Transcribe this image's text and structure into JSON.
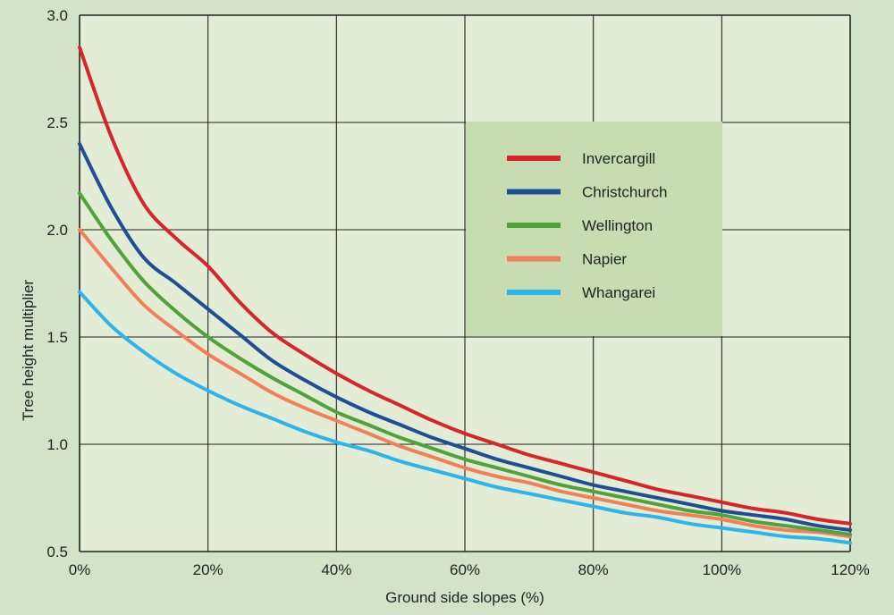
{
  "colors": {
    "page_background": "#d2e3c8",
    "plot_background": "#e3ecd5",
    "legend_background": "#c7dcb0",
    "grid": "#222222"
  },
  "chart_data": {
    "type": "line",
    "title": "",
    "xlabel": "Ground side slopes (%)",
    "ylabel": "Tree height multiplier",
    "xlim": [
      0,
      120
    ],
    "ylim": [
      0.5,
      3.0
    ],
    "x_ticks": [
      0,
      20,
      40,
      60,
      80,
      100,
      120
    ],
    "x_tick_labels": [
      "0%",
      "20%",
      "40%",
      "60%",
      "80%",
      "100%",
      "120%"
    ],
    "y_ticks": [
      0.5,
      1.0,
      1.5,
      2.0,
      2.5,
      3.0
    ],
    "y_tick_labels": [
      "0.5",
      "1.0",
      "1.5",
      "2.0",
      "2.5",
      "3.0"
    ],
    "grid": true,
    "legend_position": "upper-right",
    "x": [
      0,
      5,
      10,
      15,
      20,
      25,
      30,
      35,
      40,
      45,
      50,
      55,
      60,
      65,
      70,
      75,
      80,
      85,
      90,
      95,
      100,
      105,
      110,
      115,
      120
    ],
    "series": [
      {
        "name": "Invercargill",
        "color": "#d8242b",
        "values": [
          2.85,
          2.43,
          2.12,
          1.96,
          1.83,
          1.66,
          1.52,
          1.42,
          1.33,
          1.25,
          1.18,
          1.11,
          1.05,
          1.0,
          0.95,
          0.91,
          0.87,
          0.83,
          0.79,
          0.76,
          0.73,
          0.7,
          0.68,
          0.65,
          0.63
        ]
      },
      {
        "name": "Christchurch",
        "color": "#1e4f93",
        "values": [
          2.4,
          2.1,
          1.87,
          1.75,
          1.63,
          1.51,
          1.39,
          1.3,
          1.22,
          1.15,
          1.09,
          1.03,
          0.98,
          0.93,
          0.89,
          0.85,
          0.81,
          0.78,
          0.75,
          0.72,
          0.69,
          0.67,
          0.65,
          0.62,
          0.6
        ]
      },
      {
        "name": "Wellington",
        "color": "#4fa33a",
        "values": [
          2.17,
          1.95,
          1.76,
          1.62,
          1.5,
          1.4,
          1.31,
          1.23,
          1.15,
          1.09,
          1.03,
          0.98,
          0.93,
          0.89,
          0.85,
          0.81,
          0.78,
          0.75,
          0.72,
          0.69,
          0.67,
          0.64,
          0.62,
          0.6,
          0.58
        ]
      },
      {
        "name": "Napier",
        "color": "#f0805a",
        "values": [
          2.0,
          1.82,
          1.65,
          1.53,
          1.42,
          1.33,
          1.24,
          1.17,
          1.11,
          1.05,
          0.99,
          0.94,
          0.89,
          0.85,
          0.82,
          0.78,
          0.75,
          0.72,
          0.69,
          0.67,
          0.65,
          0.62,
          0.6,
          0.59,
          0.57
        ]
      },
      {
        "name": "Whangarei",
        "color": "#2db4ea",
        "values": [
          1.71,
          1.55,
          1.43,
          1.33,
          1.25,
          1.18,
          1.12,
          1.06,
          1.01,
          0.97,
          0.92,
          0.88,
          0.84,
          0.8,
          0.77,
          0.74,
          0.71,
          0.68,
          0.66,
          0.63,
          0.61,
          0.59,
          0.57,
          0.56,
          0.54
        ]
      }
    ]
  }
}
